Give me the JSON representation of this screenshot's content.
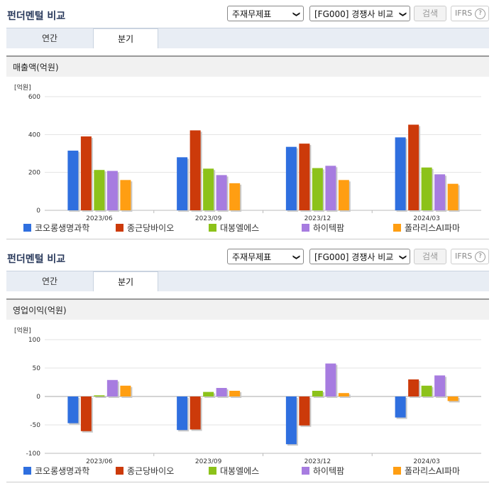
{
  "sections": [
    {
      "title": "펀더멘털 비교",
      "statement_select": "주재무제표",
      "compare_select": "[FG000] 경쟁사 비교",
      "search_label": "검색",
      "ifrs_label": "IFRS",
      "help_label": "?",
      "tabs": [
        "연간",
        "분기"
      ],
      "active_tab": "분기",
      "metric_label": "매출액(억원)"
    },
    {
      "title": "펀더멘털 비교",
      "statement_select": "주재무제표",
      "compare_select": "[FG000] 경쟁사 비교",
      "search_label": "검색",
      "ifrs_label": "IFRS",
      "help_label": "?",
      "tabs": [
        "연간",
        "분기"
      ],
      "active_tab": "분기",
      "metric_label": "영업이익(억원)"
    }
  ],
  "colors": {
    "series": [
      "#2f6fdf",
      "#cc3a0a",
      "#8cc21a",
      "#a77ce0",
      "#ff9e12"
    ]
  },
  "chart_data": [
    {
      "type": "bar",
      "title": "",
      "ylabel": "",
      "unit_label": "[억원]",
      "categories": [
        "2023/06",
        "2023/09",
        "2023/12",
        "2024/03"
      ],
      "ylim": [
        0,
        600
      ],
      "yticks": [
        0,
        200,
        400,
        600
      ],
      "grid": true,
      "legend": "bottom",
      "series": [
        {
          "name": "코오롱생명과학",
          "values": [
            315,
            280,
            335,
            385
          ]
        },
        {
          "name": "종근당바이오",
          "values": [
            390,
            422,
            352,
            452
          ]
        },
        {
          "name": "대봉엘에스",
          "values": [
            213,
            220,
            223,
            226
          ]
        },
        {
          "name": "하이텍팜",
          "values": [
            208,
            186,
            235,
            190
          ]
        },
        {
          "name": "폴라리스AI파마",
          "values": [
            160,
            143,
            160,
            140
          ]
        }
      ]
    },
    {
      "type": "bar",
      "title": "",
      "ylabel": "",
      "unit_label": "[억원]",
      "categories": [
        "2023/06",
        "2023/09",
        "2023/12",
        "2024/03"
      ],
      "ylim": [
        -100,
        100
      ],
      "yticks": [
        -100,
        -50,
        0,
        50,
        100
      ],
      "grid": true,
      "legend": "bottom",
      "series": [
        {
          "name": "코오롱생명과학",
          "values": [
            -47,
            -59,
            -84,
            -37
          ]
        },
        {
          "name": "종근당바이오",
          "values": [
            -61,
            -58,
            -51,
            30
          ]
        },
        {
          "name": "대봉엘에스",
          "values": [
            2,
            8,
            10,
            19
          ]
        },
        {
          "name": "하이텍팜",
          "values": [
            29,
            15,
            58,
            37
          ]
        },
        {
          "name": "폴라리스AI파마",
          "values": [
            19,
            10,
            6,
            -8
          ]
        }
      ]
    }
  ]
}
